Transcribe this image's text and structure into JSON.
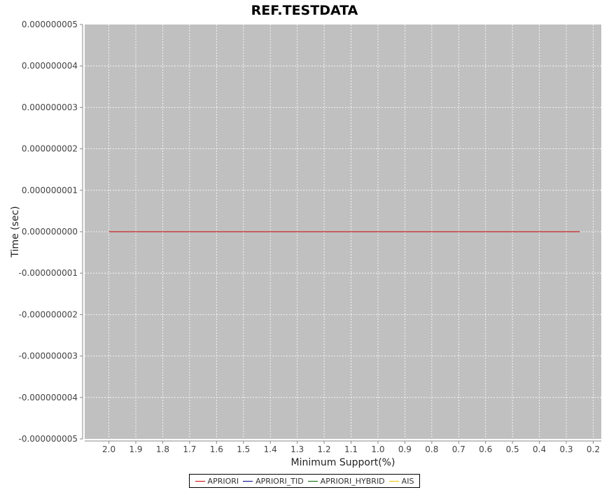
{
  "chart_data": {
    "type": "line",
    "title": "REF.TESTDATA",
    "xlabel": "Minimum Support(%)",
    "ylabel": "Time (sec)",
    "x_ticks": [
      "2.0",
      "1.9",
      "1.8",
      "1.7",
      "1.6",
      "1.5",
      "1.4",
      "1.3",
      "1.2",
      "1.1",
      "1.0",
      "0.9",
      "0.8",
      "0.7",
      "0.6",
      "0.5",
      "0.4",
      "0.3",
      "0.2"
    ],
    "xlim": [
      2.09,
      0.17
    ],
    "x_reversed": true,
    "y_ticks": [
      "0.000000005",
      "0.000000004",
      "0.000000003",
      "0.000000002",
      "0.000000001",
      "0.000000000",
      "-0.000000001",
      "-0.000000002",
      "-0.000000003",
      "-0.000000004",
      "-0.000000005"
    ],
    "ylim": [
      -5e-09,
      5e-09
    ],
    "grid": true,
    "legend_position": "bottom-center",
    "series": [
      {
        "name": "APRIORI",
        "color": "#cc0000",
        "x": [
          2.0,
          0.25
        ],
        "y": [
          0,
          0
        ]
      },
      {
        "name": "APRIORI_TID",
        "color": "#000080",
        "x": [],
        "y": []
      },
      {
        "name": "APRIORI_HYBRID",
        "color": "#006400",
        "x": [],
        "y": []
      },
      {
        "name": "AIS",
        "color": "#e6c200",
        "x": [],
        "y": []
      }
    ]
  }
}
